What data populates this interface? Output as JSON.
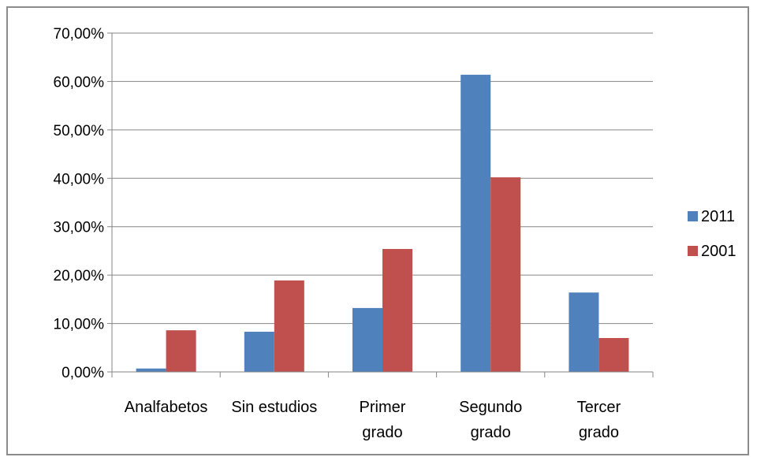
{
  "chart_data": {
    "type": "bar",
    "categories": [
      [
        "Analfabetos"
      ],
      [
        "Sin estudios"
      ],
      [
        "Primer",
        "grado"
      ],
      [
        "Segundo",
        "grado"
      ],
      [
        "Tercer",
        "grado"
      ]
    ],
    "series": [
      {
        "name": "2011",
        "color": "#4f81bd",
        "values": [
          0.7,
          8.3,
          13.2,
          61.4,
          16.4
        ]
      },
      {
        "name": "2001",
        "color": "#c0504d",
        "values": [
          8.6,
          18.9,
          25.4,
          40.2,
          7.0
        ]
      }
    ],
    "y_ticks": [
      "0,00%",
      "10,00%",
      "20,00%",
      "30,00%",
      "40,00%",
      "50,00%",
      "60,00%",
      "70,00%"
    ],
    "ylim": [
      0,
      70
    ],
    "grid": true,
    "legend_position": "right"
  }
}
